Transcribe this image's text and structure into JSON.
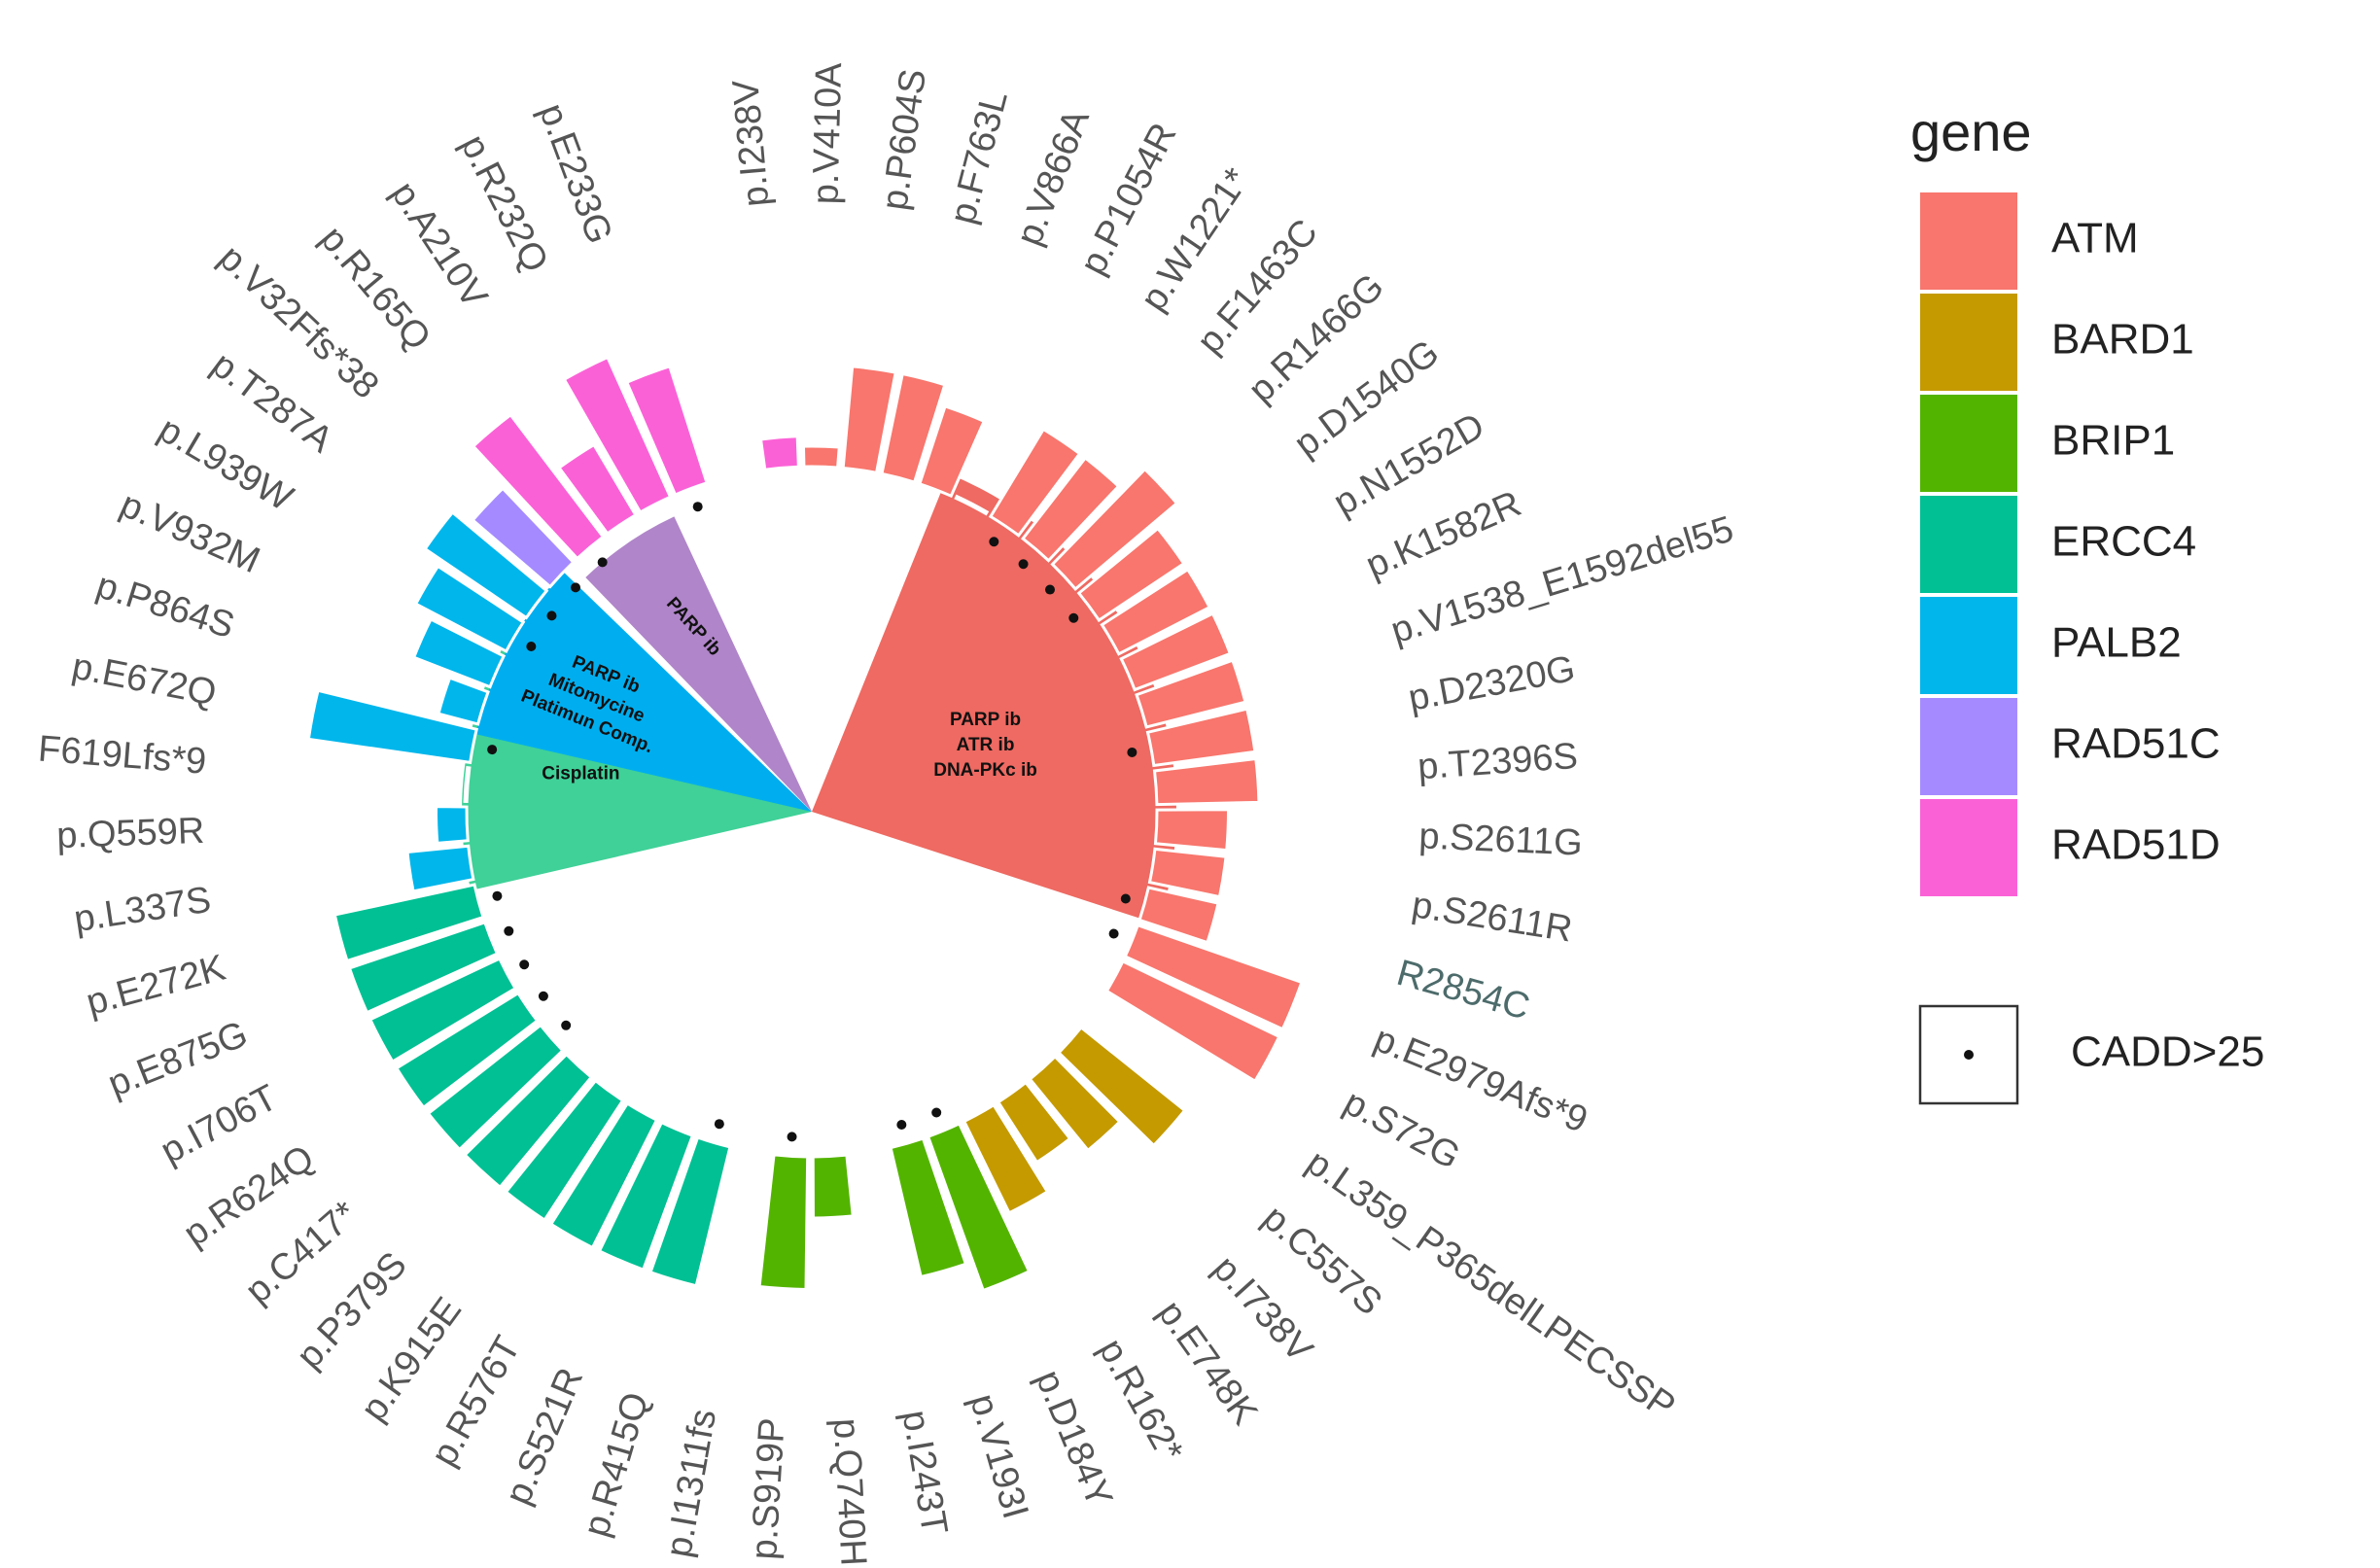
{
  "chart_data": {
    "type": "circular-bar",
    "value_label": "relative bar height",
    "legend_title": "gene",
    "genes": [
      {
        "name": "ATM",
        "color": "#F8766D"
      },
      {
        "name": "BARD1",
        "color": "#C49A00"
      },
      {
        "name": "BRIP1",
        "color": "#53B400"
      },
      {
        "name": "ERCC4",
        "color": "#00C094"
      },
      {
        "name": "PALB2",
        "color": "#00B6EB"
      },
      {
        "name": "RAD51C",
        "color": "#A58AFF"
      },
      {
        "name": "RAD51D",
        "color": "#FB61D7"
      }
    ],
    "cadd_legend_label": "CADD>25",
    "therapy_sectors": [
      {
        "name": "ATM-sector",
        "lines": [
          "PARP ib",
          "ATR ib",
          "DNA-PKc ib"
        ],
        "color": "#EE6A62"
      },
      {
        "name": "ERCC4-sector",
        "lines": [
          "Cisplatin"
        ],
        "color": "#3FD198"
      },
      {
        "name": "PALB2-sector",
        "lines": [
          "PARP ib",
          "Mitomycine",
          "Platimun Comp."
        ],
        "color": "#00AEEF"
      },
      {
        "name": "RAD51C-sector",
        "lines": [
          "PARP ib"
        ],
        "color": "#B085C9"
      }
    ],
    "mutations": [
      {
        "label": "p.I238V",
        "gene": "RAD51D",
        "value": 0.3,
        "cadd": false
      },
      {
        "label": "p.V410A",
        "gene": "ATM",
        "value": 0.2,
        "cadd": false
      },
      {
        "label": "p.P604S",
        "gene": "ATM",
        "value": 1.0,
        "cadd": false
      },
      {
        "label": "p.F763L",
        "gene": "ATM",
        "value": 1.0,
        "cadd": false
      },
      {
        "label": "p.V866A",
        "gene": "ATM",
        "value": 0.8,
        "cadd": false
      },
      {
        "label": "p.P1054R",
        "gene": "ATM",
        "value": 0.02,
        "cadd": false
      },
      {
        "label": "p.W1221*",
        "gene": "ATM",
        "value": 1.0,
        "cadd": true
      },
      {
        "label": "p.F1463C",
        "gene": "ATM",
        "value": 1.0,
        "cadd": true
      },
      {
        "label": "p.R1466G",
        "gene": "ATM",
        "value": 1.3,
        "cadd": true
      },
      {
        "label": "p.D1540G",
        "gene": "ATM",
        "value": 1.0,
        "cadd": true
      },
      {
        "label": "p.N1552D",
        "gene": "ATM",
        "value": 1.0,
        "cadd": false
      },
      {
        "label": "p.K1582R",
        "gene": "ATM",
        "value": 1.0,
        "cadd": false
      },
      {
        "label": "p.V1538_E1592del55",
        "gene": "ATM",
        "value": 1.0,
        "cadd": false
      },
      {
        "label": "p.D2320G",
        "gene": "ATM",
        "value": 1.0,
        "cadd": true
      },
      {
        "label": "p.T2396S",
        "gene": "ATM",
        "value": 1.0,
        "cadd": false
      },
      {
        "label": "p.S2611G",
        "gene": "ATM",
        "value": 0.7,
        "cadd": false
      },
      {
        "label": "p.S2611R",
        "gene": "ATM",
        "value": 0.7,
        "cadd": false
      },
      {
        "label": "R2854C",
        "gene": "ATM",
        "value": 0.7,
        "cadd": true
      },
      {
        "label": "p.E2979Afs*9",
        "gene": "ATM",
        "value": 1.7,
        "cadd": true
      },
      {
        "label": "p.S72G",
        "gene": "ATM",
        "value": 1.7,
        "cadd": false
      },
      {
        "label": "p.L359_P365delLPECSSP",
        "gene": "BARD1",
        "value": 0.02,
        "cadd": false
      },
      {
        "label": "p.C557S",
        "gene": "BARD1",
        "value": 1.3,
        "cadd": false
      },
      {
        "label": "p.I738V",
        "gene": "BARD1",
        "value": 0.9,
        "cadd": false
      },
      {
        "label": "p.E748K",
        "gene": "BARD1",
        "value": 0.7,
        "cadd": false
      },
      {
        "label": "p.R162*",
        "gene": "BARD1",
        "value": 1.0,
        "cadd": false
      },
      {
        "label": "p.D184Y",
        "gene": "BRIP1",
        "value": 1.6,
        "cadd": true
      },
      {
        "label": "p.V193I",
        "gene": "BRIP1",
        "value": 1.3,
        "cadd": true
      },
      {
        "label": "p.I243T",
        "gene": "BRIP1",
        "value": 0.02,
        "cadd": false
      },
      {
        "label": "p.Q740H",
        "gene": "BRIP1",
        "value": 0.6,
        "cadd": false
      },
      {
        "label": "p.S919P",
        "gene": "BRIP1",
        "value": 1.3,
        "cadd": true
      },
      {
        "label": "p.I1311fs",
        "gene": "ERCC4",
        "value": 0.02,
        "cadd": false
      },
      {
        "label": "p.R415Q",
        "gene": "ERCC4",
        "value": 1.4,
        "cadd": true
      },
      {
        "label": "p.S521R",
        "gene": "ERCC4",
        "value": 1.4,
        "cadd": false
      },
      {
        "label": "p.R576T",
        "gene": "ERCC4",
        "value": 1.4,
        "cadd": false
      },
      {
        "label": "p.K915E",
        "gene": "ERCC4",
        "value": 1.4,
        "cadd": false
      },
      {
        "label": "p.P379S",
        "gene": "ERCC4",
        "value": 1.4,
        "cadd": false
      },
      {
        "label": "p.C417*",
        "gene": "ERCC4",
        "value": 1.4,
        "cadd": true
      },
      {
        "label": "p.R624Q",
        "gene": "ERCC4",
        "value": 1.4,
        "cadd": true
      },
      {
        "label": "p.I706T",
        "gene": "ERCC4",
        "value": 1.4,
        "cadd": true
      },
      {
        "label": "p.E875G",
        "gene": "ERCC4",
        "value": 1.4,
        "cadd": true
      },
      {
        "label": "p.E272K",
        "gene": "ERCC4",
        "value": 1.4,
        "cadd": true
      },
      {
        "label": "p.L337S",
        "gene": "PALB2",
        "value": 0.6,
        "cadd": false
      },
      {
        "label": "p.Q559R",
        "gene": "PALB2",
        "value": 0.3,
        "cadd": false
      },
      {
        "label": "F619Lfs*9",
        "gene": "PALB2",
        "value": 0.02,
        "cadd": false
      },
      {
        "label": "p.E672Q",
        "gene": "PALB2",
        "value": 1.6,
        "cadd": true
      },
      {
        "label": "p.P864S",
        "gene": "PALB2",
        "value": 0.4,
        "cadd": false
      },
      {
        "label": "p.V932M",
        "gene": "PALB2",
        "value": 0.8,
        "cadd": false
      },
      {
        "label": "p.L939W",
        "gene": "PALB2",
        "value": 1.0,
        "cadd": true
      },
      {
        "label": "p.T287A",
        "gene": "PALB2",
        "value": 1.2,
        "cadd": true
      },
      {
        "label": "p.V32Ffs*38",
        "gene": "RAD51C",
        "value": 1.0,
        "cadd": true
      },
      {
        "label": "p.R165Q",
        "gene": "RAD51D",
        "value": 1.5,
        "cadd": true
      },
      {
        "label": "p.A210V",
        "gene": "RAD51D",
        "value": 0.8,
        "cadd": false
      },
      {
        "label": "p.R232Q",
        "gene": "RAD51D",
        "value": 1.5,
        "cadd": false
      },
      {
        "label": "p.E233G",
        "gene": "RAD51D",
        "value": 1.2,
        "cadd": true
      }
    ]
  }
}
